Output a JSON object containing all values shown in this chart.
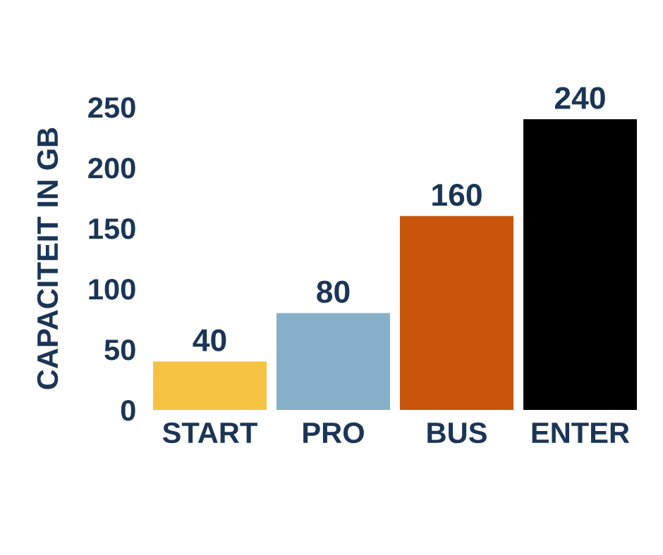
{
  "chart_data": {
    "type": "bar",
    "ylabel": "CAPACITEIT IN GB",
    "categories": [
      "START",
      "PRO",
      "BUS",
      "ENTER"
    ],
    "values": [
      40,
      80,
      160,
      240
    ],
    "colors": [
      "#f5c242",
      "#86b0c9",
      "#c8540a",
      "#000000"
    ],
    "ylim": [
      0,
      250
    ],
    "yticks": [
      0,
      50,
      100,
      150,
      200,
      250
    ],
    "data_labels": true,
    "grid": false,
    "legend": false
  }
}
